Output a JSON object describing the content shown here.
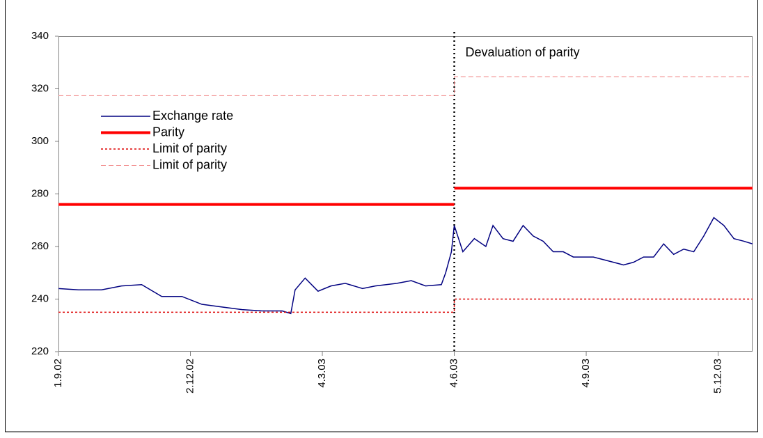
{
  "chart_data": {
    "type": "line",
    "xlim": [
      "2002-09-01",
      "2003-12-29"
    ],
    "ylim": [
      220,
      340
    ],
    "yticks": [
      220,
      240,
      260,
      280,
      300,
      320,
      340
    ],
    "xticks": [
      {
        "value": "2002-09-01",
        "label": "1.9.02"
      },
      {
        "value": "2002-12-02",
        "label": "2.12.02"
      },
      {
        "value": "2003-03-04",
        "label": "4.3.03"
      },
      {
        "value": "2003-06-04",
        "label": "4.6.03"
      },
      {
        "value": "2003-09-04",
        "label": "4.9.03"
      },
      {
        "value": "2003-12-05",
        "label": "5.12.03"
      }
    ],
    "annotation": {
      "text": "Devaluation of parity",
      "x": "2003-06-04"
    },
    "legend": "upper left",
    "series": [
      {
        "name": "Exchange rate",
        "color": "#000080",
        "line_style": "solid",
        "x": [
          "2002-09-01",
          "2002-09-15",
          "2002-10-01",
          "2002-10-15",
          "2002-10-29",
          "2002-11-12",
          "2002-11-26",
          "2002-12-10",
          "2002-12-24",
          "2003-01-07",
          "2003-01-21",
          "2003-02-04",
          "2003-02-10",
          "2003-02-13",
          "2003-02-20",
          "2003-03-01",
          "2003-03-10",
          "2003-03-20",
          "2003-04-01",
          "2003-04-10",
          "2003-04-25",
          "2003-05-05",
          "2003-05-15",
          "2003-05-26",
          "2003-05-29",
          "2003-06-02",
          "2003-06-04",
          "2003-06-10",
          "2003-06-18",
          "2003-06-26",
          "2003-07-01",
          "2003-07-08",
          "2003-07-15",
          "2003-07-22",
          "2003-07-29",
          "2003-08-05",
          "2003-08-12",
          "2003-08-19",
          "2003-08-26",
          "2003-09-02",
          "2003-09-09",
          "2003-09-16",
          "2003-09-23",
          "2003-09-30",
          "2003-10-07",
          "2003-10-14",
          "2003-10-21",
          "2003-10-28",
          "2003-11-04",
          "2003-11-11",
          "2003-11-18",
          "2003-11-25",
          "2003-12-02",
          "2003-12-09",
          "2003-12-16",
          "2003-12-23",
          "2003-12-29"
        ],
        "values": [
          244,
          243.5,
          243.5,
          245,
          245.5,
          241,
          241,
          238,
          237,
          236,
          235.5,
          235.5,
          234.5,
          243.5,
          248,
          243,
          245,
          246,
          244,
          245,
          246,
          247,
          245,
          245.5,
          250,
          258,
          268,
          258,
          263,
          260,
          268,
          263,
          262,
          268,
          264,
          262,
          258,
          258,
          256,
          256,
          256,
          255,
          254,
          253,
          254,
          256,
          256,
          261,
          257,
          259,
          258,
          264,
          271,
          268,
          263,
          262,
          261
        ]
      },
      {
        "name": "Parity",
        "color": "#ff0000",
        "line_style": "thick",
        "x": [
          "2002-09-01",
          "2003-06-04",
          "2003-06-04",
          "2003-06-04",
          "2003-12-29"
        ],
        "values": [
          276,
          276,
          null,
          282.2,
          282.2
        ]
      },
      {
        "name": "Limit of parity",
        "color": "#dd0000",
        "line_style": "dotted",
        "x": [
          "2002-09-01",
          "2003-06-04",
          "2003-06-04",
          "2003-12-29"
        ],
        "values": [
          235,
          235,
          240,
          240
        ]
      },
      {
        "name": "Limit of parity",
        "color": "#f08080",
        "line_style": "dashed",
        "x": [
          "2002-09-01",
          "2003-06-04",
          "2003-06-04",
          "2003-12-29"
        ],
        "values": [
          317.4,
          317.4,
          324.6,
          324.6
        ]
      }
    ]
  }
}
